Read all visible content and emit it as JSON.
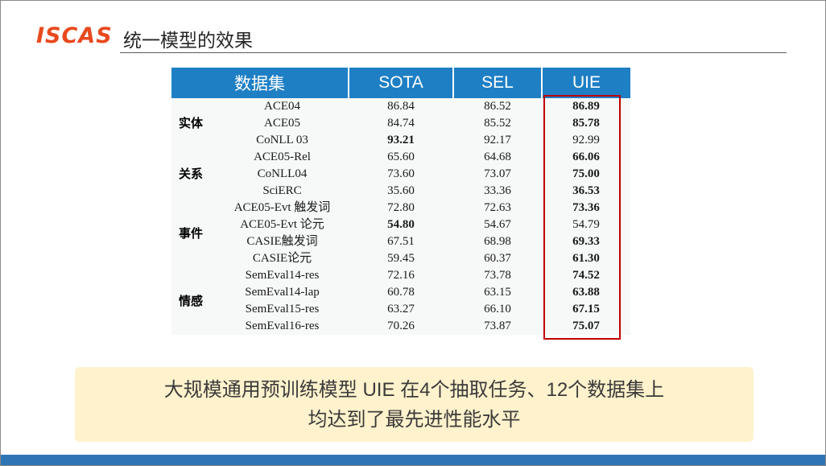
{
  "header": {
    "logo": "ISCAS",
    "title": "统一模型的效果"
  },
  "table": {
    "header_dataset": "数据集",
    "columns": [
      "SOTA",
      "SEL",
      "UIE"
    ],
    "groups": [
      {
        "label": "实体",
        "rows": [
          {
            "dataset": "ACE04",
            "sota": "86.84",
            "sel": "86.52",
            "uie": "86.89",
            "bold": "uie"
          },
          {
            "dataset": "ACE05",
            "sota": "84.74",
            "sel": "85.52",
            "uie": "85.78",
            "bold": "uie"
          },
          {
            "dataset": "CoNLL 03",
            "sota": "93.21",
            "sel": "92.17",
            "uie": "92.99",
            "bold": "sota"
          }
        ]
      },
      {
        "label": "关系",
        "rows": [
          {
            "dataset": "ACE05-Rel",
            "sota": "65.60",
            "sel": "64.68",
            "uie": "66.06",
            "bold": "uie"
          },
          {
            "dataset": "CoNLL04",
            "sota": "73.60",
            "sel": "73.07",
            "uie": "75.00",
            "bold": "uie"
          },
          {
            "dataset": "SciERC",
            "sota": "35.60",
            "sel": "33.36",
            "uie": "36.53",
            "bold": "uie"
          }
        ]
      },
      {
        "label": "事件",
        "rows": [
          {
            "dataset": "ACE05-Evt 触发词",
            "sota": "72.80",
            "sel": "72.63",
            "uie": "73.36",
            "bold": "uie"
          },
          {
            "dataset": "ACE05-Evt 论元",
            "sota": "54.80",
            "sel": "54.67",
            "uie": "54.79",
            "bold": "sota"
          },
          {
            "dataset": "CASIE触发词",
            "sota": "67.51",
            "sel": "68.98",
            "uie": "69.33",
            "bold": "uie"
          },
          {
            "dataset": "CASIE论元",
            "sota": "59.45",
            "sel": "60.37",
            "uie": "61.30",
            "bold": "uie"
          }
        ]
      },
      {
        "label": "情感",
        "rows": [
          {
            "dataset": "SemEval14-res",
            "sota": "72.16",
            "sel": "73.78",
            "uie": "74.52",
            "bold": "uie"
          },
          {
            "dataset": "SemEval14-lap",
            "sota": "60.78",
            "sel": "63.15",
            "uie": "63.88",
            "bold": "uie"
          },
          {
            "dataset": "SemEval15-res",
            "sota": "63.27",
            "sel": "66.10",
            "uie": "67.15",
            "bold": "uie"
          },
          {
            "dataset": "SemEval16-res",
            "sota": "70.26",
            "sel": "73.87",
            "uie": "75.07",
            "bold": "uie"
          }
        ]
      }
    ]
  },
  "banner": {
    "line1": "大规模通用预训练模型 UIE 在4个抽取任务、12个数据集上",
    "line2": "均达到了最先进性能水平"
  },
  "colors": {
    "table_header_blue": "#1e7fc5",
    "highlight_red": "#c00000",
    "banner_yellow": "#fff2cc",
    "footer_blue": "#2e75b6",
    "logo_orange": "#e8491d"
  }
}
